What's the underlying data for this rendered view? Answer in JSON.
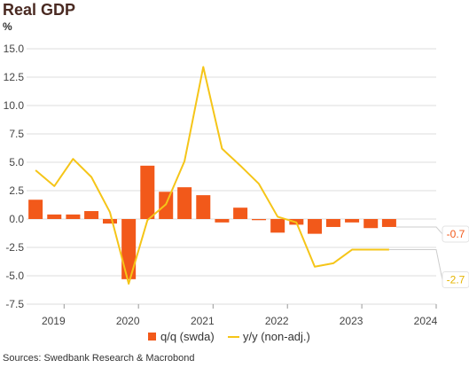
{
  "header": {
    "title": "Real GDP",
    "unit": "%"
  },
  "footer": {
    "source": "Sources: Swedbank Research & Macrobond"
  },
  "chart_data": {
    "type": "bar",
    "yticks": [
      15.0,
      12.5,
      10.0,
      7.5,
      5.0,
      2.5,
      0.0,
      -2.5,
      -5.0,
      -7.5
    ],
    "ytick_labels": [
      "15.0",
      "12.5",
      "10.0",
      "7.5",
      "5.0",
      "2.5",
      "0.0",
      "-2.5",
      "-5.0",
      "-7.5"
    ],
    "ylim": [
      -7.5,
      15.0
    ],
    "xlim": [
      "2018-07-01",
      "2024-01-01"
    ],
    "xtick_labels": [
      "2019",
      "2020",
      "2021",
      "2022",
      "2023",
      "2024"
    ],
    "xtick_dates": [
      "2019-01-01",
      "2020-01-01",
      "2021-01-01",
      "2022-01-01",
      "2023-01-01",
      "2024-01-01"
    ],
    "grid": true,
    "legend_position": "bottom",
    "series": [
      {
        "name": "q/q (swda)",
        "type": "bar",
        "color": "#f2591a",
        "x": [
          "2018-Q3",
          "2018-Q4",
          "2019-Q1",
          "2019-Q2",
          "2019-Q3",
          "2019-Q4",
          "2020-Q1",
          "2020-Q2",
          "2020-Q3",
          "2020-Q4",
          "2021-Q1",
          "2021-Q2",
          "2021-Q3",
          "2021-Q4",
          "2022-Q1",
          "2022-Q2",
          "2022-Q3",
          "2022-Q4",
          "2023-Q1",
          "2023-Q2"
        ],
        "values": [
          1.7,
          0.4,
          0.4,
          0.7,
          -0.4,
          -5.3,
          4.7,
          2.4,
          2.8,
          2.1,
          -0.3,
          1.0,
          -0.1,
          -1.2,
          -0.5,
          -1.3,
          -0.7,
          -0.3,
          -0.8,
          -0.7
        ]
      },
      {
        "name": "y/y (non-adj.)",
        "type": "line",
        "color": "#f5c518",
        "x": [
          "2018-Q3",
          "2018-Q4",
          "2019-Q1",
          "2019-Q2",
          "2019-Q3",
          "2019-Q4",
          "2020-Q1",
          "2020-Q2",
          "2020-Q3",
          "2020-Q4",
          "2021-Q1",
          "2021-Q2",
          "2021-Q3",
          "2021-Q4",
          "2022-Q1",
          "2022-Q2",
          "2022-Q3",
          "2022-Q4",
          "2023-Q1",
          "2023-Q2"
        ],
        "values": [
          4.3,
          2.9,
          5.3,
          3.7,
          0.6,
          -5.7,
          -0.1,
          1.3,
          5.1,
          13.4,
          6.2,
          4.7,
          3.1,
          0.2,
          -0.3,
          -4.2,
          -3.9,
          -2.7,
          -2.7,
          -2.7
        ]
      }
    ],
    "end_labels": [
      {
        "text": "-0.7",
        "color": "#f2591a",
        "value": -0.7
      },
      {
        "text": "-2.7",
        "color": "#e5b400",
        "value": -2.7
      }
    ]
  }
}
